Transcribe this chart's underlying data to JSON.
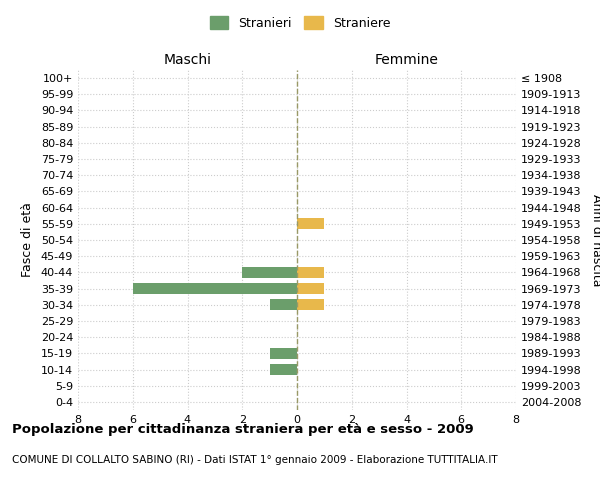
{
  "age_groups": [
    "0-4",
    "5-9",
    "10-14",
    "15-19",
    "20-24",
    "25-29",
    "30-34",
    "35-39",
    "40-44",
    "45-49",
    "50-54",
    "55-59",
    "60-64",
    "65-69",
    "70-74",
    "75-79",
    "80-84",
    "85-89",
    "90-94",
    "95-99",
    "100+"
  ],
  "birth_years": [
    "2004-2008",
    "1999-2003",
    "1994-1998",
    "1989-1993",
    "1984-1988",
    "1979-1983",
    "1974-1978",
    "1969-1973",
    "1964-1968",
    "1959-1963",
    "1954-1958",
    "1949-1953",
    "1944-1948",
    "1939-1943",
    "1934-1938",
    "1929-1933",
    "1924-1928",
    "1919-1923",
    "1914-1918",
    "1909-1913",
    "≤ 1908"
  ],
  "maschi_stranieri": [
    0,
    0,
    1,
    1,
    0,
    0,
    1,
    6,
    2,
    0,
    0,
    0,
    0,
    0,
    0,
    0,
    0,
    0,
    0,
    0,
    0
  ],
  "femmine_straniere": [
    0,
    0,
    0,
    0,
    0,
    0,
    1,
    1,
    1,
    0,
    0,
    1,
    0,
    0,
    0,
    0,
    0,
    0,
    0,
    0,
    0
  ],
  "color_maschi": "#6b9e6b",
  "color_femmine": "#e8b84b",
  "xlim": 8,
  "title": "Popolazione per cittadinanza straniera per età e sesso - 2009",
  "subtitle": "COMUNE DI COLLALTO SABINO (RI) - Dati ISTAT 1° gennaio 2009 - Elaborazione TUTTITALIA.IT",
  "ylabel_left": "Fasce di età",
  "ylabel_right": "Anni di nascita",
  "legend_maschi": "Stranieri",
  "legend_femmine": "Straniere",
  "maschi_label": "Maschi",
  "femmine_label": "Femmine",
  "background_color": "#ffffff",
  "grid_color": "#cccccc",
  "center_line_color": "#999966"
}
